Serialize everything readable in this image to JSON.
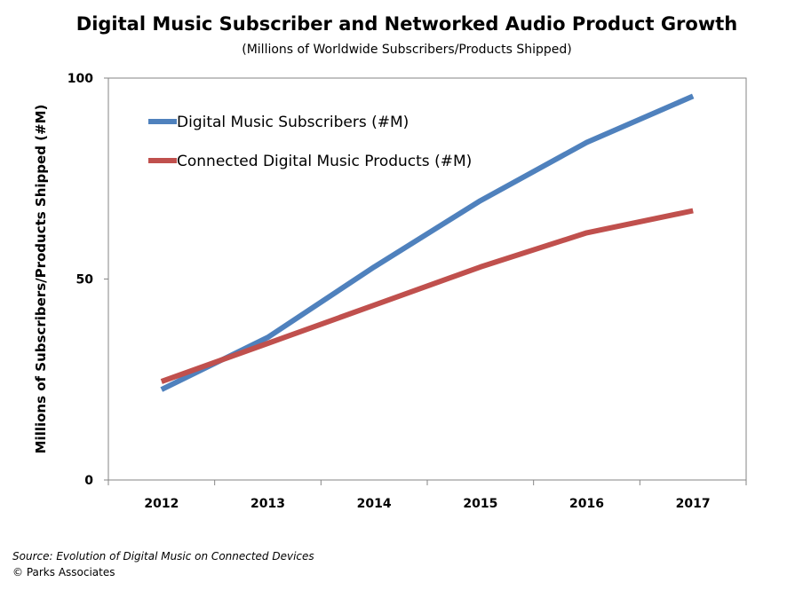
{
  "footer": {
    "source": "Source: Evolution of Digital Music on Connected Devices",
    "copyright": "© Parks Associates"
  },
  "chart_data": {
    "type": "line",
    "title": "Digital Music Subscriber and Networked Audio Product Growth",
    "subtitle": "(Millions of Worldwide Subscribers/Products Shipped)",
    "xlabel": "",
    "ylabel": "Millions of Subscribers/Products Shipped (#M)",
    "categories": [
      "2012",
      "2013",
      "2014",
      "2015",
      "2016",
      "2017"
    ],
    "ylim": [
      0,
      100
    ],
    "yticks": [
      "0",
      "50",
      "100"
    ],
    "grid": false,
    "legend_position": "top-left",
    "series": [
      {
        "name": "Digital Music Subscribers (#M)",
        "color": "#4F81BD",
        "values": [
          22.5,
          35.5,
          53,
          69.5,
          84,
          95.5
        ]
      },
      {
        "name": "Connected Digital Music Products (#M)",
        "color": "#C0504D",
        "values": [
          24.5,
          34,
          43.5,
          53,
          61.5,
          67
        ]
      }
    ]
  }
}
